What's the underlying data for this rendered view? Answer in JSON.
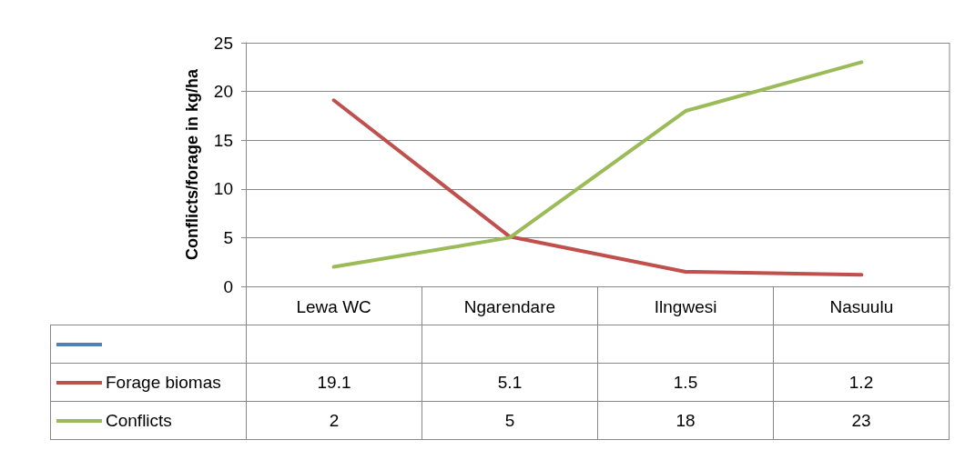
{
  "chart_data": {
    "type": "line",
    "ylabel": "Conflicts/forage in kg/ha",
    "categories": [
      "Lewa WC",
      "Ngarendare",
      "Ilngwesi",
      "Nasuulu"
    ],
    "series": [
      {
        "color": "#4f81bd",
        "values": [
          null,
          null,
          null,
          null
        ]
      },
      {
        "name": "Forage biomas",
        "color": "#c0504d",
        "values": [
          19.1,
          5.1,
          1.5,
          1.2
        ]
      },
      {
        "name": "Conflicts",
        "color": "#9bbb59",
        "values": [
          2,
          5,
          18,
          23
        ]
      }
    ],
    "ylim": [
      0,
      25
    ],
    "yticks": [
      0,
      5,
      10,
      15,
      20,
      25
    ],
    "grid": "y",
    "legend": "bottom",
    "marker": "none",
    "line_style": "solid",
    "data_labels": true
  }
}
